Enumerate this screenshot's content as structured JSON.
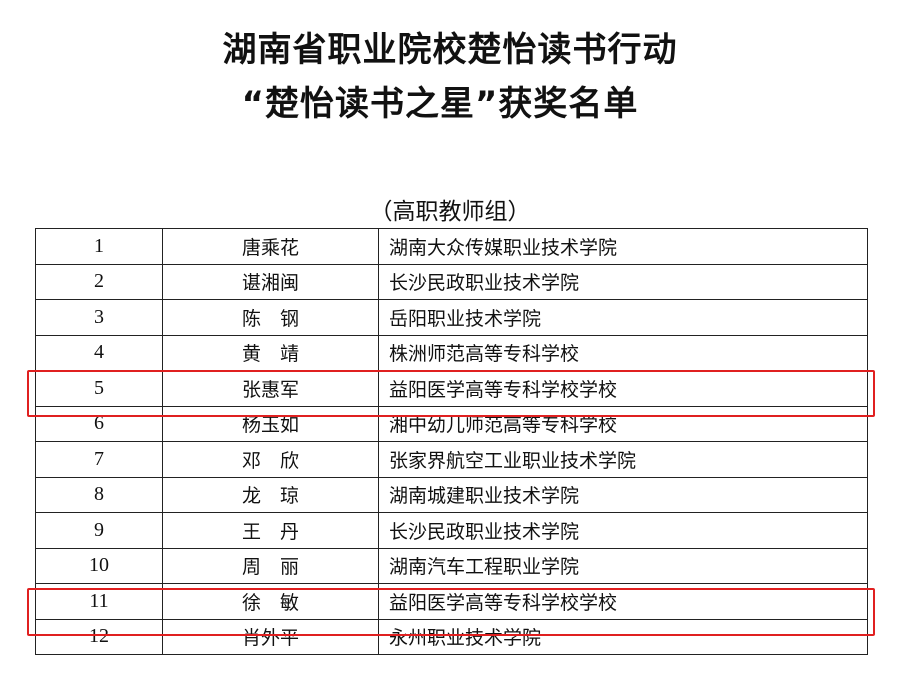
{
  "title_line1": "湖南省职业院校楚怡读书行动",
  "title_line2": "“楚怡读书之星”获奖名单",
  "subtitle": "（高职教师组）",
  "rows": [
    {
      "no": "1",
      "name": "唐乘花",
      "school": "湖南大众传媒职业技术学院"
    },
    {
      "no": "2",
      "name": "谌湘闽",
      "school": "长沙民政职业技术学院"
    },
    {
      "no": "3",
      "name": "陈　钢",
      "school": "岳阳职业技术学院"
    },
    {
      "no": "4",
      "name": "黄　靖",
      "school": "株洲师范高等专科学校"
    },
    {
      "no": "5",
      "name": "张惠军",
      "school": "益阳医学高等专科学校学校"
    },
    {
      "no": "6",
      "name": "杨玉如",
      "school": "湘中幼儿师范高等专科学校"
    },
    {
      "no": "7",
      "name": "邓　欣",
      "school": "张家界航空工业职业技术学院"
    },
    {
      "no": "8",
      "name": "龙　琼",
      "school": "湖南城建职业技术学院"
    },
    {
      "no": "9",
      "name": "王　丹",
      "school": "长沙民政职业技术学院"
    },
    {
      "no": "10",
      "name": "周　丽",
      "school": "湖南汽车工程职业学院"
    },
    {
      "no": "11",
      "name": "徐　敏",
      "school": "益阳医学高等专科学校学校"
    },
    {
      "no": "12",
      "name": "肖外平",
      "school": "永州职业技术学院"
    }
  ],
  "highlighted_rows": [
    "5",
    "11"
  ],
  "highlight_color": "#e02020"
}
